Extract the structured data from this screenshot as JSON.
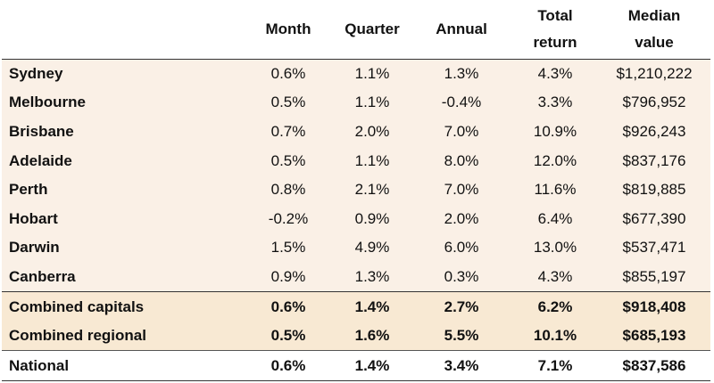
{
  "chart_data": {
    "type": "table",
    "columns": [
      "",
      "Month",
      "Quarter",
      "Annual",
      "Total return",
      "Median value"
    ],
    "header": {
      "month": "Month",
      "quarter": "Quarter",
      "annual": "Annual",
      "total_return_1": "Total",
      "total_return_2": "return",
      "median_value_1": "Median",
      "median_value_2": "value"
    },
    "rows": [
      {
        "name": "Sydney",
        "month": "0.6%",
        "quarter": "1.1%",
        "annual": "1.3%",
        "total": "4.3%",
        "median": "$1,210,222"
      },
      {
        "name": "Melbourne",
        "month": "0.5%",
        "quarter": "1.1%",
        "annual": "-0.4%",
        "total": "3.3%",
        "median": "$796,952"
      },
      {
        "name": "Brisbane",
        "month": "0.7%",
        "quarter": "2.0%",
        "annual": "7.0%",
        "total": "10.9%",
        "median": "$926,243"
      },
      {
        "name": "Adelaide",
        "month": "0.5%",
        "quarter": "1.1%",
        "annual": "8.0%",
        "total": "12.0%",
        "median": "$837,176"
      },
      {
        "name": "Perth",
        "month": "0.8%",
        "quarter": "2.1%",
        "annual": "7.0%",
        "total": "11.6%",
        "median": "$819,885"
      },
      {
        "name": "Hobart",
        "month": "-0.2%",
        "quarter": "0.9%",
        "annual": "2.0%",
        "total": "6.4%",
        "median": "$677,390"
      },
      {
        "name": "Darwin",
        "month": "1.5%",
        "quarter": "4.9%",
        "annual": "6.0%",
        "total": "13.0%",
        "median": "$537,471"
      },
      {
        "name": "Canberra",
        "month": "0.9%",
        "quarter": "1.3%",
        "annual": "0.3%",
        "total": "4.3%",
        "median": "$855,197"
      }
    ],
    "aggregates": [
      {
        "name": "Combined capitals",
        "month": "0.6%",
        "quarter": "1.4%",
        "annual": "2.7%",
        "total": "6.2%",
        "median": "$918,408"
      },
      {
        "name": "Combined regional",
        "month": "0.5%",
        "quarter": "1.6%",
        "annual": "5.5%",
        "total": "10.1%",
        "median": "$685,193"
      }
    ],
    "national": {
      "name": "National",
      "month": "0.6%",
      "quarter": "1.4%",
      "annual": "3.4%",
      "total": "7.1%",
      "median": "$837,586"
    }
  },
  "colors": {
    "city_row_bg": "#faf0e6",
    "aggregate_row_bg": "#f8e9d3",
    "rule": "#333333"
  }
}
